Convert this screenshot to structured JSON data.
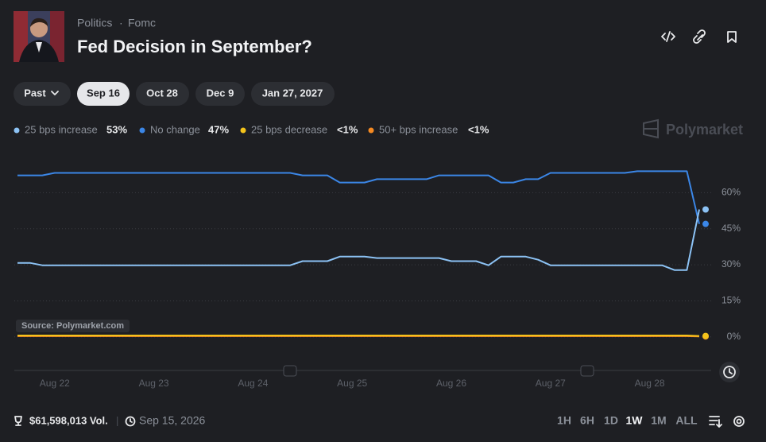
{
  "header": {
    "breadcrumb": [
      "Politics",
      "Fomc"
    ],
    "title": "Fed Decision in September?"
  },
  "tabs": [
    "Past",
    "Sep 16",
    "Oct 28",
    "Dec 9",
    "Jan 27, 2027"
  ],
  "brand": "Polymarket",
  "chart_data": {
    "type": "line",
    "annotation": "Source: Polymarket.com",
    "categories": [
      null,
      null,
      null,
      "Aug 22",
      null,
      null,
      null,
      null,
      null,
      null,
      null,
      "Aug 23",
      null,
      null,
      null,
      null,
      null,
      null,
      null,
      "Aug 24",
      null,
      null,
      null,
      null,
      null,
      null,
      null,
      "Aug 25",
      null,
      null,
      null,
      null,
      null,
      null,
      null,
      "Aug 26",
      null,
      null,
      null,
      null,
      null,
      null,
      null,
      "Aug 27",
      null,
      null,
      null,
      null,
      null,
      null,
      null,
      "Aug 28",
      null,
      null,
      null,
      null
    ],
    "series": [
      {
        "name": "25 bps increase",
        "color": "#8cc2f4",
        "current_label": "53%",
        "values": [
          30.8,
          30.8,
          29.8,
          29.8,
          29.8,
          29.8,
          29.8,
          29.8,
          29.8,
          29.8,
          29.8,
          29.8,
          29.8,
          29.8,
          29.8,
          29.8,
          29.8,
          29.8,
          29.8,
          29.8,
          29.8,
          29.8,
          29.8,
          31.5,
          31.5,
          31.5,
          33.4,
          33.4,
          33.4,
          32.8,
          32.8,
          32.8,
          32.8,
          32.8,
          32.8,
          31.5,
          31.5,
          31.5,
          29.8,
          33.4,
          33.4,
          33.4,
          32.1,
          29.8,
          29.8,
          29.8,
          29.8,
          29.8,
          29.8,
          29.8,
          29.8,
          29.8,
          29.8,
          27.8,
          27.8,
          53
        ]
      },
      {
        "name": "No change",
        "color": "#3b86e6",
        "current_label": "47%",
        "values": [
          67.2,
          67.2,
          67.2,
          68.2,
          68.2,
          68.2,
          68.2,
          68.2,
          68.2,
          68.2,
          68.2,
          68.2,
          68.2,
          68.2,
          68.2,
          68.2,
          68.2,
          68.2,
          68.2,
          68.2,
          68.2,
          68.2,
          68.2,
          67.2,
          67.2,
          67.2,
          64.2,
          64.2,
          64.2,
          65.6,
          65.6,
          65.6,
          65.6,
          65.6,
          67.2,
          67.2,
          67.2,
          67.2,
          67.2,
          64.2,
          64.2,
          65.6,
          65.6,
          68.2,
          68.2,
          68.2,
          68.2,
          68.2,
          68.2,
          68.2,
          68.9,
          68.9,
          68.9,
          68.9,
          68.9,
          47
        ]
      },
      {
        "name": "25 bps decrease",
        "color": "#f4c31b",
        "current_label": "<1%",
        "values": [
          0.6,
          0.6,
          0.6,
          0.6,
          0.6,
          0.6,
          0.6,
          0.6,
          0.6,
          0.6,
          0.6,
          0.6,
          0.6,
          0.6,
          0.6,
          0.6,
          0.6,
          0.6,
          0.6,
          0.6,
          0.6,
          0.6,
          0.6,
          0.6,
          0.6,
          0.6,
          0.6,
          0.6,
          0.6,
          0.6,
          0.6,
          0.6,
          0.6,
          0.6,
          0.6,
          0.6,
          0.6,
          0.6,
          0.6,
          0.6,
          0.6,
          0.6,
          0.6,
          0.6,
          0.6,
          0.6,
          0.6,
          0.6,
          0.6,
          0.6,
          0.6,
          0.6,
          0.6,
          0.6,
          0.6,
          0.4
        ]
      },
      {
        "name": "50+ bps increase",
        "color": "#f58a22",
        "current_label": "<1%",
        "values": [
          0.3,
          0.3,
          0.3,
          0.3,
          0.3,
          0.3,
          0.3,
          0.3,
          0.3,
          0.3,
          0.3,
          0.3,
          0.3,
          0.3,
          0.3,
          0.3,
          0.3,
          0.3,
          0.3,
          0.3,
          0.3,
          0.3,
          0.3,
          0.3,
          0.3,
          0.3,
          0.3,
          0.3,
          0.3,
          0.3,
          0.3,
          0.3,
          0.3,
          0.3,
          0.3,
          0.3,
          0.3,
          0.3,
          0.3,
          0.3,
          0.3,
          0.3,
          0.3,
          0.3,
          0.3,
          0.3,
          0.3,
          0.3,
          0.3,
          0.3,
          0.3,
          0.3,
          0.3,
          0.3,
          0.3,
          0.2
        ]
      }
    ],
    "ylim": [
      -8,
      74
    ],
    "yticks": [
      {
        "value": 0,
        "label": "0%"
      },
      {
        "value": 15,
        "label": "15%"
      },
      {
        "value": 30,
        "label": "30%"
      },
      {
        "value": 45,
        "label": "45%"
      },
      {
        "value": 60,
        "label": "60%"
      }
    ],
    "grid": true
  },
  "footer": {
    "volume": "$61,598,013 Vol.",
    "date": "Sep 15, 2026",
    "ranges": [
      "1H",
      "6H",
      "1D",
      "1W",
      "1M",
      "ALL"
    ]
  }
}
